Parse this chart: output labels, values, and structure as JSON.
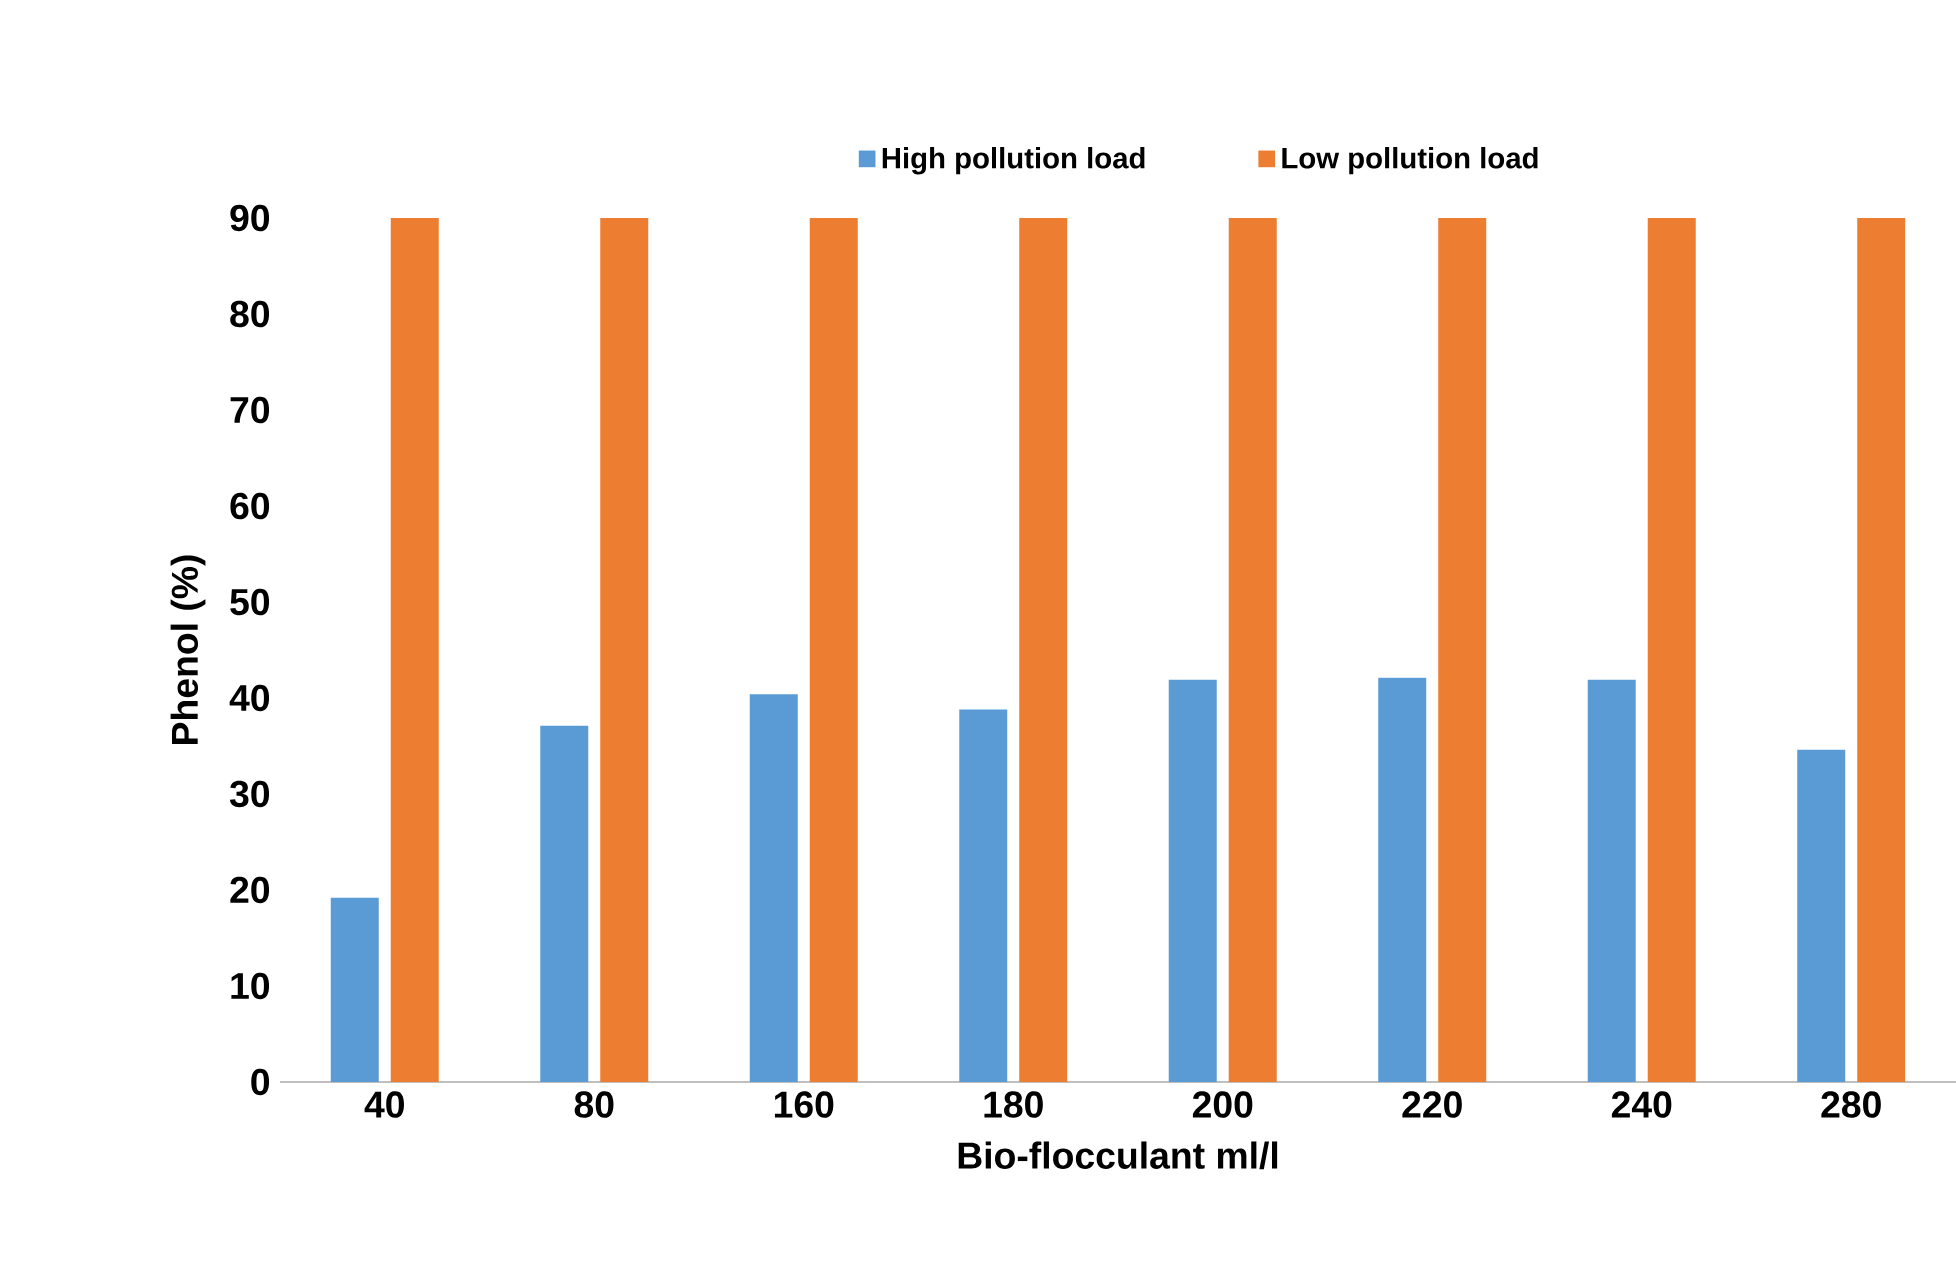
{
  "chart_data": {
    "type": "bar",
    "xlabel": "Bio-flocculant  ml/l",
    "ylabel": "Phenol (%)",
    "categories": [
      "40",
      "80",
      "160",
      "180",
      "200",
      "220",
      "240",
      "280"
    ],
    "series": [
      {
        "name": "High pollution load",
        "color": "#5b9bd5",
        "values": [
          19.2,
          37.1,
          40.4,
          38.8,
          41.9,
          42.1,
          41.9,
          34.6
        ]
      },
      {
        "name": "Low pollution load",
        "color": "#ed7d31",
        "values": [
          90,
          90,
          90,
          90,
          90,
          90,
          90,
          90
        ]
      }
    ],
    "ylim": [
      0,
      90
    ],
    "yticks": [
      0,
      10,
      20,
      30,
      40,
      50,
      60,
      70,
      80,
      90
    ],
    "grid": false,
    "legend": "top"
  }
}
